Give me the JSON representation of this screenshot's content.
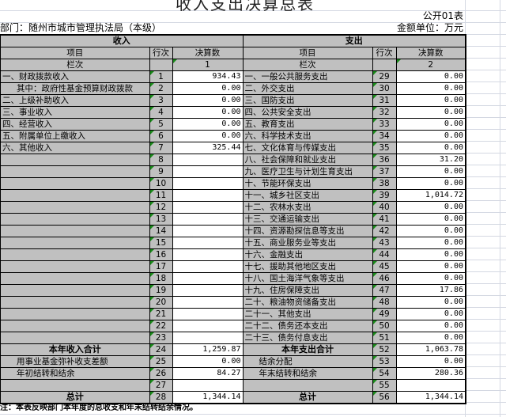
{
  "title": "收入支出决算总表",
  "form_no": "公开01表",
  "department": "部门：随州市城市管理执法局（本级）",
  "unit": "金额单位：万元",
  "income": {
    "section": "收入",
    "col_item": "项目",
    "col_row": "行次",
    "col_amount": "决算数",
    "col_index_label": "栏次",
    "col_index": "1",
    "rows": [
      {
        "label": "一、财政拨款收入",
        "no": "1",
        "value": "934.43"
      },
      {
        "label": "其中：政府性基金预算财政拨款",
        "no": "2",
        "value": "0.00",
        "indent": true
      },
      {
        "label": "二、上级补助收入",
        "no": "3",
        "value": "0.00"
      },
      {
        "label": "三、事业收入",
        "no": "4",
        "value": "0.00"
      },
      {
        "label": "四、经营收入",
        "no": "5",
        "value": "0.00"
      },
      {
        "label": "五、附属单位上缴收入",
        "no": "6",
        "value": "0.00"
      },
      {
        "label": "六、其他收入",
        "no": "7",
        "value": "325.44"
      },
      {
        "label": "",
        "no": "8",
        "value": ""
      },
      {
        "label": "",
        "no": "9",
        "value": ""
      },
      {
        "label": "",
        "no": "10",
        "value": ""
      },
      {
        "label": "",
        "no": "11",
        "value": ""
      },
      {
        "label": "",
        "no": "12",
        "value": ""
      },
      {
        "label": "",
        "no": "13",
        "value": ""
      },
      {
        "label": "",
        "no": "14",
        "value": ""
      },
      {
        "label": "",
        "no": "15",
        "value": ""
      },
      {
        "label": "",
        "no": "16",
        "value": ""
      },
      {
        "label": "",
        "no": "17",
        "value": ""
      },
      {
        "label": "",
        "no": "18",
        "value": ""
      },
      {
        "label": "",
        "no": "19",
        "value": ""
      },
      {
        "label": "",
        "no": "20",
        "value": ""
      },
      {
        "label": "",
        "no": "21",
        "value": ""
      },
      {
        "label": "",
        "no": "22",
        "value": ""
      },
      {
        "label": "",
        "no": "23",
        "value": ""
      },
      {
        "label": "本年收入合计",
        "no": "24",
        "value": "1,259.87",
        "bold": true
      },
      {
        "label": "用事业基金弥补收支差额",
        "no": "25",
        "value": "0.00",
        "indent": true
      },
      {
        "label": "年初结转和结余",
        "no": "26",
        "value": "84.27",
        "indent": true
      },
      {
        "label": "",
        "no": "27",
        "value": ""
      },
      {
        "label": "总计",
        "no": "28",
        "value": "1,344.14",
        "bold": true
      }
    ]
  },
  "expense": {
    "section": "支出",
    "col_item": "项目",
    "col_row": "行次",
    "col_amount": "决算数",
    "col_index_label": "栏次",
    "col_index": "2",
    "rows": [
      {
        "label": "一、一般公共服务支出",
        "no": "29",
        "value": "0.00"
      },
      {
        "label": "二、外交支出",
        "no": "30",
        "value": "0.00"
      },
      {
        "label": "三、国防支出",
        "no": "31",
        "value": "0.00"
      },
      {
        "label": "四、公共安全支出",
        "no": "32",
        "value": "0.00"
      },
      {
        "label": "五、教育支出",
        "no": "33",
        "value": "0.00"
      },
      {
        "label": "六、科学技术支出",
        "no": "34",
        "value": "0.00"
      },
      {
        "label": "七、文化体育与传媒支出",
        "no": "35",
        "value": "0.00"
      },
      {
        "label": "八、社会保障和就业支出",
        "no": "36",
        "value": "31.20"
      },
      {
        "label": "九、医疗卫生与计划生育支出",
        "no": "37",
        "value": "0.00"
      },
      {
        "label": "十、节能环保支出",
        "no": "38",
        "value": "0.00"
      },
      {
        "label": "十一、城乡社区支出",
        "no": "39",
        "value": "1,014.72"
      },
      {
        "label": "十二、农林水支出",
        "no": "40",
        "value": "0.00"
      },
      {
        "label": "十三、交通运输支出",
        "no": "41",
        "value": "0.00"
      },
      {
        "label": "十四、资源勘探信息等支出",
        "no": "42",
        "value": "0.00"
      },
      {
        "label": "十五、商业服务业等支出",
        "no": "43",
        "value": "0.00"
      },
      {
        "label": "十六、金融支出",
        "no": "44",
        "value": "0.00"
      },
      {
        "label": "十七、援助其他地区支出",
        "no": "45",
        "value": "0.00"
      },
      {
        "label": "十八、国土海洋气象等支出",
        "no": "46",
        "value": "0.00"
      },
      {
        "label": "十九、住房保障支出",
        "no": "47",
        "value": "17.86"
      },
      {
        "label": "二十、粮油物资储备支出",
        "no": "48",
        "value": "0.00"
      },
      {
        "label": "二十一、其他支出",
        "no": "49",
        "value": "0.00"
      },
      {
        "label": "二十二、债务还本支出",
        "no": "50",
        "value": "0.00"
      },
      {
        "label": "二十三、债务付息支出",
        "no": "51",
        "value": "0.00"
      },
      {
        "label": "本年支出合计",
        "no": "52",
        "value": "1,063.78",
        "bold": true
      },
      {
        "label": "结余分配",
        "no": "53",
        "value": "0.00",
        "indent": true
      },
      {
        "label": "年末结转和结余",
        "no": "54",
        "value": "280.36",
        "indent": true
      },
      {
        "label": "",
        "no": "55",
        "value": ""
      },
      {
        "label": "总计",
        "no": "56",
        "value": "1,344.14",
        "bold": true
      }
    ]
  },
  "note": "注：本表反映部门本年度的总收支和年末结转结余情况。",
  "colors": {
    "header_bg": "#c0c0c0",
    "grid": "#d4d8e2",
    "comment_marker": "#1a8a1a"
  }
}
